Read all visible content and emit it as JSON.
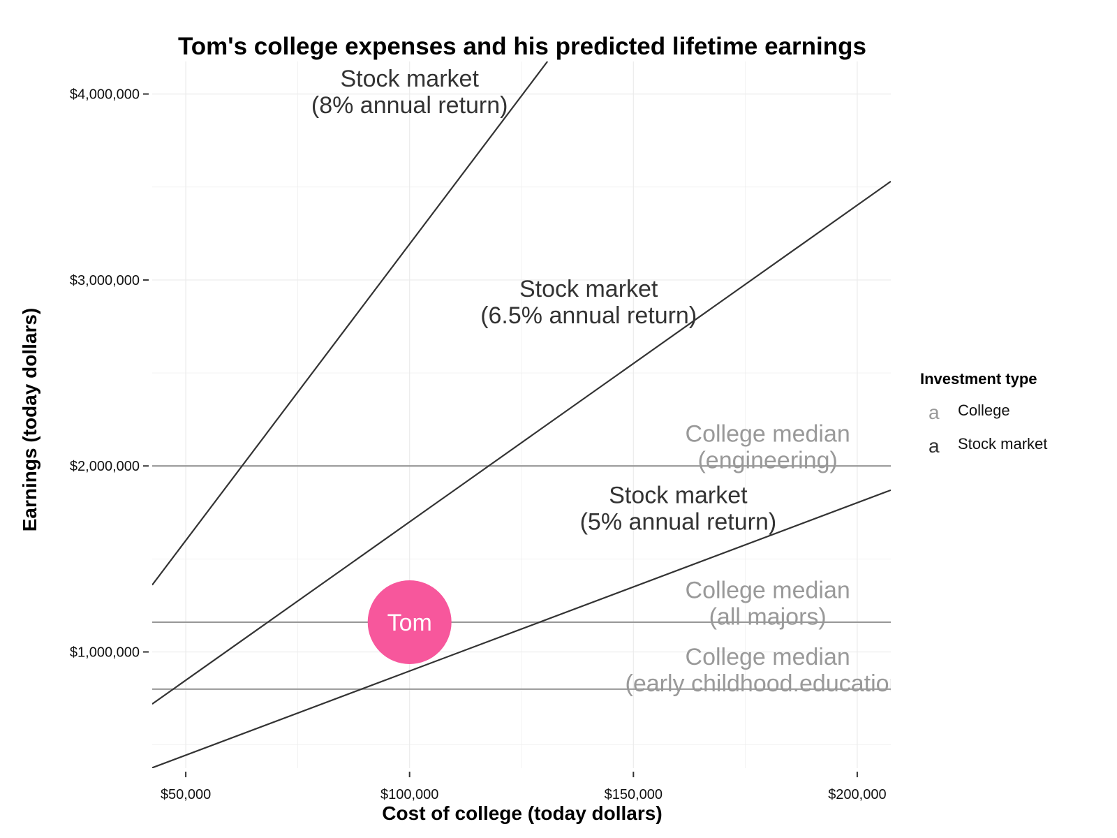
{
  "chart_data": {
    "type": "line",
    "title": "Tom's college expenses and his predicted lifetime earnings",
    "xlabel": "Cost of college (today dollars)",
    "ylabel": "Earnings (today dollars)",
    "xlim": [
      42500,
      207500
    ],
    "ylim": [
      375000,
      4175000
    ],
    "x_ticks": [
      {
        "value": 50000,
        "label": "$50,000"
      },
      {
        "value": 100000,
        "label": "$100,000"
      },
      {
        "value": 150000,
        "label": "$150,000"
      },
      {
        "value": 200000,
        "label": "$200,000"
      }
    ],
    "y_ticks": [
      {
        "value": 1000000,
        "label": "$1,000,000"
      },
      {
        "value": 2000000,
        "label": "$2,000,000"
      },
      {
        "value": 3000000,
        "label": "$3,000,000"
      },
      {
        "value": 4000000,
        "label": "$4,000,000"
      }
    ],
    "grid": true,
    "legend": {
      "title": "Investment type",
      "position": "right",
      "key_glyph": "a",
      "items": [
        {
          "label": "College",
          "color": "#999999"
        },
        {
          "label": "Stock market",
          "color": "#333333"
        }
      ]
    },
    "stock_market_lines": [
      {
        "rate": "8%",
        "points": [
          [
            42500,
            1360000
          ],
          [
            130800,
            4175000
          ]
        ]
      },
      {
        "rate": "6.5%",
        "points": [
          [
            42500,
            720000
          ],
          [
            207500,
            3530000
          ]
        ]
      },
      {
        "rate": "5%",
        "points": [
          [
            42500,
            377000
          ],
          [
            207500,
            1870000
          ]
        ]
      }
    ],
    "college_medians": [
      {
        "major": "engineering",
        "value": 2000000
      },
      {
        "major": "all majors",
        "value": 1160000
      },
      {
        "major": "early childhood.education",
        "value": 800000
      }
    ],
    "annotations": [
      {
        "group": "Stock market",
        "lines": [
          "Stock market",
          "(8% annual return)"
        ],
        "x": 100000,
        "y": 4040000
      },
      {
        "group": "Stock market",
        "lines": [
          "Stock market",
          "(6.5% annual return)"
        ],
        "x": 140000,
        "y": 2910000
      },
      {
        "group": "Stock market",
        "lines": [
          "Stock market",
          "(5% annual return)"
        ],
        "x": 160000,
        "y": 1800000
      },
      {
        "group": "College",
        "lines": [
          "College median",
          "(engineering)"
        ],
        "x": 180000,
        "y": 2130000
      },
      {
        "group": "College",
        "lines": [
          "College median",
          "(all majors)"
        ],
        "x": 180000,
        "y": 1290000
      },
      {
        "group": "College",
        "lines": [
          "College median",
          "(early childhood.education)"
        ],
        "x": 180000,
        "y": 930000
      }
    ],
    "highlight_point": {
      "label": "Tom",
      "x": 100000,
      "y": 1160000,
      "color": "#F7579C"
    },
    "colors": {
      "stock_market": "#333333",
      "college": "#999999",
      "grid": "#EBEBEB",
      "tom": "#F7579C"
    }
  }
}
